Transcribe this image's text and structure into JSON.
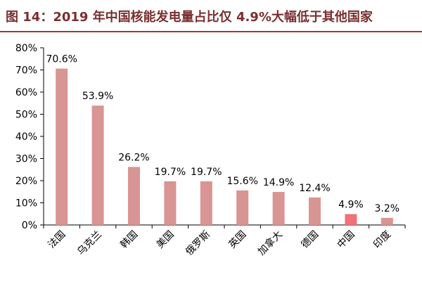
{
  "figure": {
    "title": "图 14：2019 年中国核能发电量占比仅 4.9%大幅低于其他国家"
  },
  "colors": {
    "bar": "#d99593",
    "bar_highlight": "#f0717a",
    "title": "#7a2e2e",
    "rule": "#9b3a3a",
    "axis": "#000000",
    "text": "#000000"
  },
  "chart_data": {
    "type": "bar",
    "categories": [
      "法国",
      "乌克兰",
      "韩国",
      "美国",
      "俄罗斯",
      "英国",
      "加拿大",
      "德国",
      "中国",
      "印度"
    ],
    "values": [
      70.6,
      53.9,
      26.2,
      19.7,
      19.7,
      15.6,
      14.9,
      12.4,
      4.9,
      3.2
    ],
    "value_labels": [
      "70.6%",
      "53.9%",
      "26.2%",
      "19.7%",
      "19.7%",
      "15.6%",
      "14.9%",
      "12.4%",
      "4.9%",
      "3.2%"
    ],
    "highlight_index": 8,
    "ylim": [
      0,
      80
    ],
    "yticks": [
      0,
      10,
      20,
      30,
      40,
      50,
      60,
      70,
      80
    ],
    "ytick_labels": [
      "0%",
      "10%",
      "20%",
      "30%",
      "40%",
      "50%",
      "60%",
      "70%",
      "80%"
    ],
    "xlabel": "",
    "ylabel": "",
    "grid": false,
    "legend": "none"
  }
}
